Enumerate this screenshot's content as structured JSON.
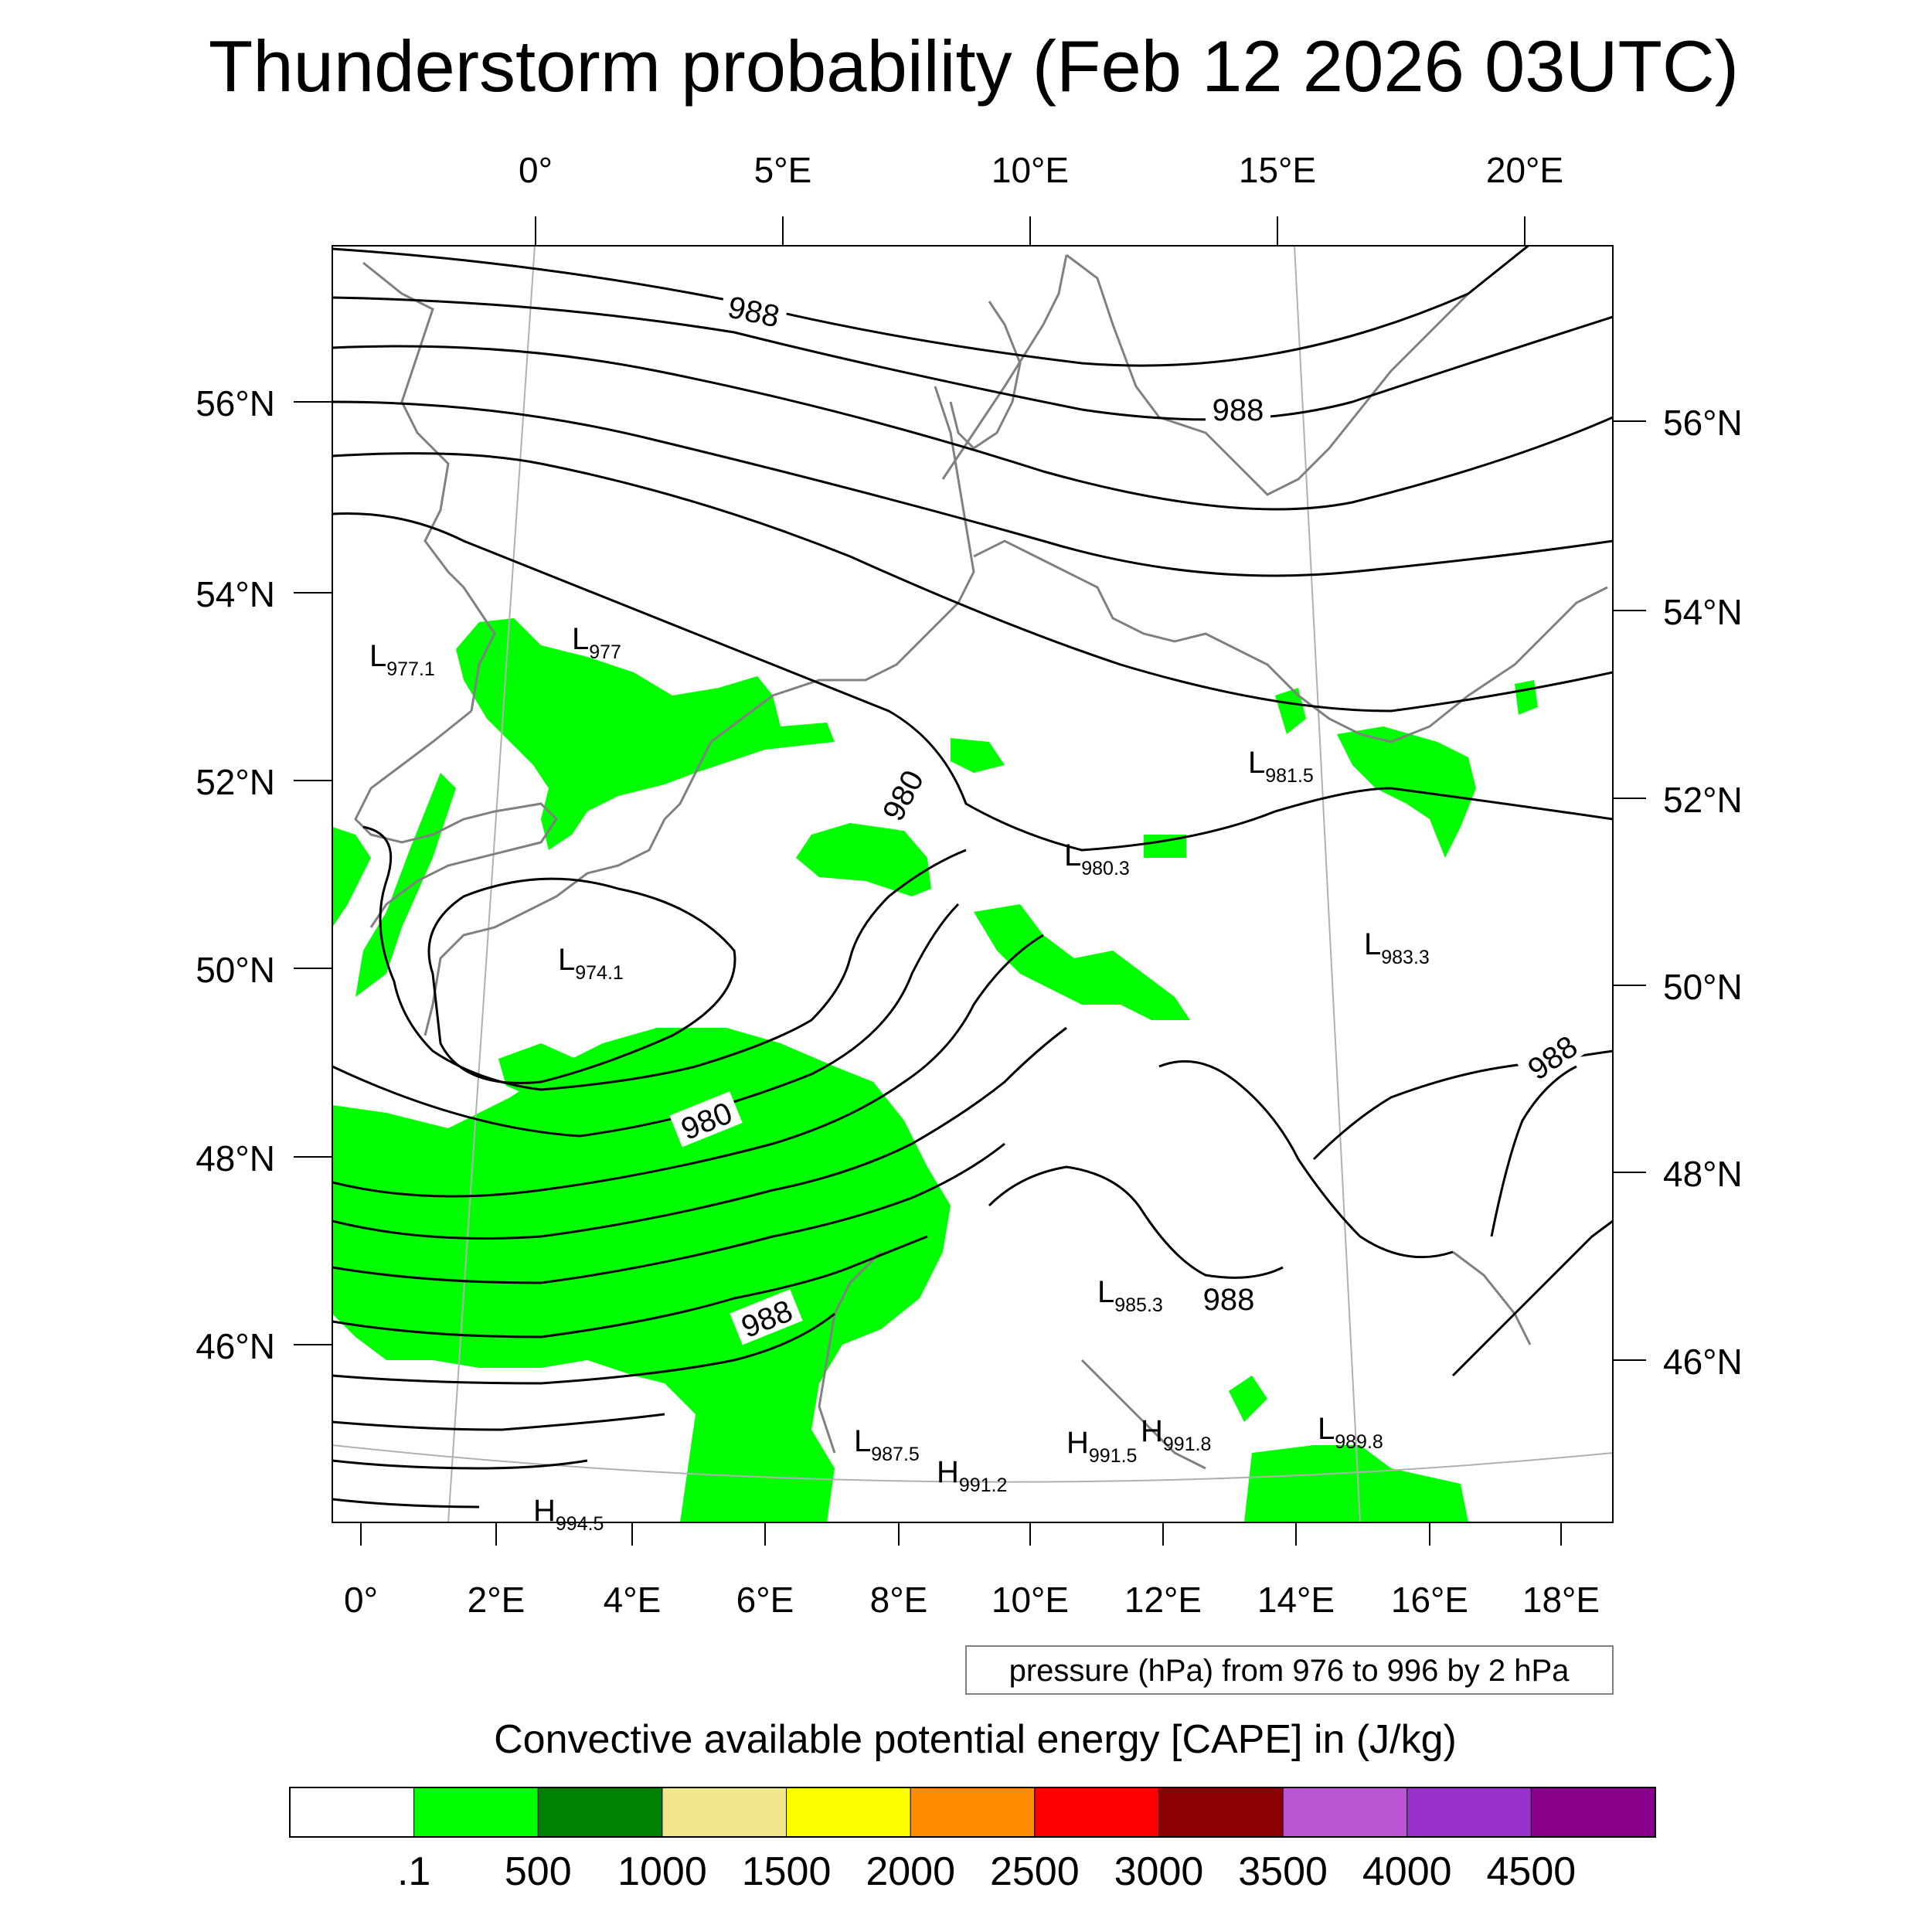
{
  "title": "Thunderstorm probability (Feb 12 2026 03UTC)",
  "top_lon_labels": [
    "0°",
    "5°E",
    "10°E",
    "15°E",
    "20°E"
  ],
  "bottom_lon_labels": [
    "0°",
    "2°E",
    "4°E",
    "6°E",
    "8°E",
    "10°E",
    "12°E",
    "14°E",
    "16°E",
    "18°E"
  ],
  "left_lat_labels": [
    "56°N",
    "54°N",
    "52°N",
    "50°N",
    "48°N",
    "46°N"
  ],
  "right_lat_labels": [
    "56°N",
    "54°N",
    "52°N",
    "50°N",
    "48°N",
    "46°N"
  ],
  "contour_labels": [
    "988",
    "988",
    "980",
    "980",
    "988",
    "988",
    "988"
  ],
  "pressure_centers": [
    {
      "type": "L",
      "value": "977.1"
    },
    {
      "type": "L",
      "value": "977"
    },
    {
      "type": "L",
      "value": "974.1"
    },
    {
      "type": "L",
      "value": "980.3"
    },
    {
      "type": "L",
      "value": "981.5"
    },
    {
      "type": "L",
      "value": "983.3"
    },
    {
      "type": "L",
      "value": "985.3"
    },
    {
      "type": "L",
      "value": "987.5"
    },
    {
      "type": "H",
      "value": "991.2"
    },
    {
      "type": "H",
      "value": "991.5"
    },
    {
      "type": "H",
      "value": "991.8"
    },
    {
      "type": "L",
      "value": "989.8"
    },
    {
      "type": "H",
      "value": "994.5"
    }
  ],
  "contour_note": "pressure (hPa) from 976 to 996 by 2 hPa",
  "colorbar": {
    "title": "Convective available potential energy [CAPE] in (J/kg)",
    "colors": [
      "#ffffff",
      "#00ff00",
      "#008000",
      "#f0e68c",
      "#ffff00",
      "#ff8c00",
      "#ff0000",
      "#8b0000",
      "#ba55d3",
      "#9932cc",
      "#8b008b"
    ],
    "ticks": [
      ".1",
      "500",
      "1000",
      "1500",
      "2000",
      "2500",
      "3000",
      "3500",
      "4000",
      "4500"
    ]
  },
  "colors": {
    "cape_low": "#00ff00",
    "isobar": "#000000",
    "coastline": "#808080",
    "graticule": "#b0b0b0"
  }
}
